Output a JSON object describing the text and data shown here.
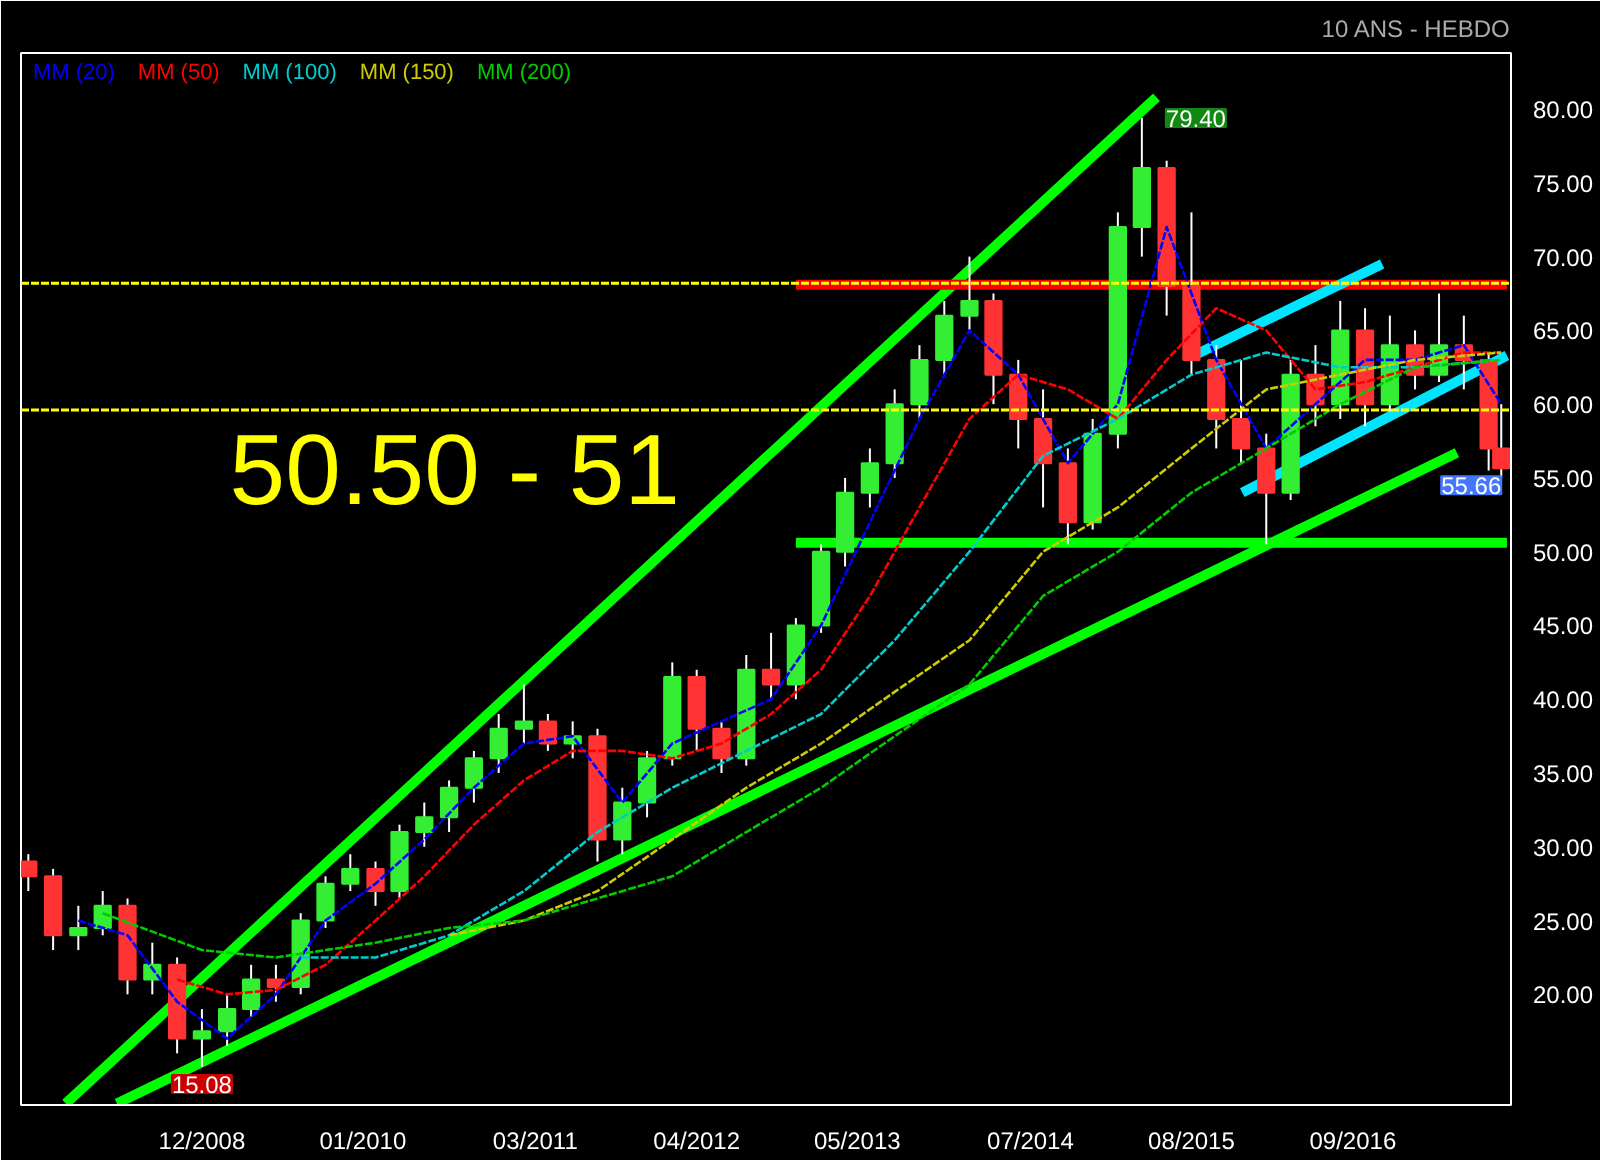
{
  "chart_data": {
    "type": "candlestick",
    "subtitle": "10 ANS - HEBDO",
    "x": [
      "2007-10",
      "2007-12",
      "2008-02",
      "2008-04",
      "2008-06",
      "2008-08",
      "2008-10",
      "2008-12",
      "2009-02",
      "2009-04",
      "2009-06",
      "2009-08",
      "2009-10",
      "2009-12",
      "2010-02",
      "2010-04",
      "2010-06",
      "2010-08",
      "2010-10",
      "2010-12",
      "2011-02",
      "2011-04",
      "2011-06",
      "2011-08",
      "2011-10",
      "2011-12",
      "2012-02",
      "2012-04",
      "2012-06",
      "2012-08",
      "2012-10",
      "2012-12",
      "2013-02",
      "2013-04",
      "2013-06",
      "2013-08",
      "2013-10",
      "2013-12",
      "2014-02",
      "2014-04",
      "2014-06",
      "2014-08",
      "2014-10",
      "2014-12",
      "2015-02",
      "2015-04",
      "2015-06",
      "2015-08",
      "2015-10",
      "2015-12",
      "2016-02",
      "2016-04",
      "2016-06",
      "2016-08",
      "2016-10",
      "2016-12",
      "2017-02",
      "2017-04",
      "2017-06",
      "2017-08",
      "2017-09"
    ],
    "ohlc": [
      [
        29,
        29.5,
        27,
        28
      ],
      [
        28,
        28.5,
        23,
        24
      ],
      [
        24,
        26,
        23,
        24.5
      ],
      [
        24.5,
        27,
        24,
        26
      ],
      [
        26,
        26.5,
        20,
        21
      ],
      [
        21,
        23.5,
        20,
        22
      ],
      [
        22,
        22.5,
        16,
        17
      ],
      [
        17,
        19,
        15.08,
        17.5
      ],
      [
        17.5,
        20,
        16.5,
        19
      ],
      [
        19,
        22,
        18.5,
        21
      ],
      [
        21,
        22,
        19.5,
        20.5
      ],
      [
        20.5,
        25.5,
        20,
        25
      ],
      [
        25,
        28,
        24.5,
        27.5
      ],
      [
        27.5,
        29.5,
        27,
        28.5
      ],
      [
        28.5,
        29,
        26,
        27
      ],
      [
        27,
        31.5,
        26.5,
        31
      ],
      [
        31,
        33,
        30,
        32
      ],
      [
        32,
        34.5,
        31,
        34
      ],
      [
        34,
        36.5,
        33,
        36
      ],
      [
        36,
        39,
        35,
        38
      ],
      [
        38,
        41,
        37,
        38.5
      ],
      [
        38.5,
        39,
        36.5,
        37
      ],
      [
        37,
        38.5,
        36,
        37.5
      ],
      [
        37.5,
        38,
        29,
        30.5
      ],
      [
        30.5,
        34,
        29.5,
        33
      ],
      [
        33,
        36.5,
        32,
        36
      ],
      [
        36,
        42.5,
        35.5,
        41.5
      ],
      [
        41.5,
        42,
        36.5,
        38
      ],
      [
        38,
        38.5,
        35,
        36
      ],
      [
        36,
        43,
        35.5,
        42
      ],
      [
        42,
        44.5,
        40,
        41
      ],
      [
        41,
        45.5,
        40,
        45
      ],
      [
        45,
        50.5,
        44.5,
        50
      ],
      [
        50,
        55,
        49,
        54
      ],
      [
        54,
        57,
        53,
        56
      ],
      [
        56,
        61,
        55,
        60
      ],
      [
        60,
        64,
        59,
        63
      ],
      [
        63,
        67,
        62,
        66
      ],
      [
        66,
        70,
        65,
        67
      ],
      [
        67,
        67.5,
        60,
        62
      ],
      [
        62,
        63,
        57,
        59
      ],
      [
        59,
        61,
        53,
        56
      ],
      [
        56,
        57,
        50.5,
        52
      ],
      [
        52,
        59,
        51.5,
        58
      ],
      [
        58,
        73,
        57,
        72
      ],
      [
        72,
        79.4,
        70,
        76
      ],
      [
        76,
        76.5,
        66,
        68
      ],
      [
        68,
        73,
        62,
        63
      ],
      [
        63,
        64,
        57,
        59
      ],
      [
        59,
        63,
        56,
        57
      ],
      [
        57,
        58,
        50.5,
        54
      ],
      [
        54,
        63,
        53.5,
        62
      ],
      [
        62,
        64,
        58.5,
        60
      ],
      [
        60,
        67,
        59,
        65
      ],
      [
        65,
        66.5,
        58.5,
        60
      ],
      [
        60,
        66,
        59.5,
        64
      ],
      [
        64,
        65,
        61,
        62
      ],
      [
        62,
        67.5,
        61.5,
        64
      ],
      [
        64,
        66,
        61,
        63
      ],
      [
        63,
        63.5,
        55.5,
        57
      ],
      [
        57,
        60,
        55,
        55.66
      ]
    ],
    "series": [
      {
        "name": "MM (20)",
        "type": "line",
        "line_style": "dashed",
        "color": "#0000ff",
        "x": [
          "2008-02",
          "2008-06",
          "2008-10",
          "2009-02",
          "2009-06",
          "2009-10",
          "2010-02",
          "2010-06",
          "2010-10",
          "2011-02",
          "2011-06",
          "2011-10",
          "2012-02",
          "2012-06",
          "2012-10",
          "2013-02",
          "2013-06",
          "2013-10",
          "2014-02",
          "2014-06",
          "2014-10",
          "2015-02",
          "2015-06",
          "2015-10",
          "2016-02",
          "2016-06",
          "2016-10",
          "2017-02",
          "2017-06",
          "2017-09"
        ],
        "values": [
          25,
          24,
          19.5,
          17,
          20,
          25,
          27.5,
          30.5,
          34,
          37,
          37.5,
          33,
          37,
          38.5,
          40,
          45,
          52,
          59,
          65,
          62,
          56,
          60,
          72,
          63,
          57,
          60,
          63,
          63,
          64,
          60
        ]
      },
      {
        "name": "MM (50)",
        "type": "line",
        "line_style": "dashed",
        "color": "#ff0000",
        "x": [
          "2008-10",
          "2009-02",
          "2009-06",
          "2009-10",
          "2010-02",
          "2010-06",
          "2010-10",
          "2011-02",
          "2011-06",
          "2011-10",
          "2012-02",
          "2012-06",
          "2012-10",
          "2013-02",
          "2013-06",
          "2013-10",
          "2014-02",
          "2014-06",
          "2014-10",
          "2015-02",
          "2015-06",
          "2015-10",
          "2016-02",
          "2016-06",
          "2016-10",
          "2017-02",
          "2017-06",
          "2017-09"
        ],
        "values": [
          21,
          20,
          20.3,
          22,
          25,
          28,
          31.5,
          34.5,
          36.5,
          36.5,
          36,
          37,
          39,
          42,
          47,
          53,
          59,
          62,
          61,
          59,
          63,
          66.5,
          65,
          61,
          61.5,
          62.5,
          63.5,
          63.5
        ]
      },
      {
        "name": "MM (100)",
        "type": "line",
        "line_style": "dashed",
        "color": "#00cccc",
        "x": [
          "2009-08",
          "2010-02",
          "2010-08",
          "2011-02",
          "2011-08",
          "2012-02",
          "2012-08",
          "2013-02",
          "2013-08",
          "2014-02",
          "2014-08",
          "2015-02",
          "2015-08",
          "2016-02",
          "2016-08",
          "2017-02",
          "2017-09"
        ],
        "values": [
          22.5,
          22.5,
          24,
          27,
          31,
          34,
          36.5,
          39,
          44,
          50,
          56.5,
          59,
          62,
          63.5,
          62.5,
          62.5,
          63
        ]
      },
      {
        "name": "MM (150)",
        "type": "line",
        "line_style": "dashed",
        "color": "#cccc00",
        "x": [
          "2010-08",
          "2011-02",
          "2011-08",
          "2012-02",
          "2012-08",
          "2013-02",
          "2013-08",
          "2014-02",
          "2014-08",
          "2015-02",
          "2015-08",
          "2016-02",
          "2016-08",
          "2017-02",
          "2017-09"
        ],
        "values": [
          24,
          25,
          27,
          30.5,
          34,
          37,
          40.5,
          44,
          50,
          53,
          57,
          61,
          62,
          63,
          63.5
        ]
      },
      {
        "name": "MM (200)",
        "type": "line",
        "line_style": "dashed",
        "color": "#00cc00",
        "x": [
          "2008-04",
          "2008-12",
          "2009-06",
          "2010-02",
          "2010-08",
          "2011-02",
          "2011-08",
          "2012-02",
          "2012-08",
          "2013-02",
          "2013-08",
          "2014-02",
          "2014-08",
          "2015-02",
          "2015-08",
          "2016-02",
          "2016-08",
          "2017-02",
          "2017-09"
        ],
        "values": [
          25.5,
          23,
          22.5,
          23.5,
          24.5,
          25,
          26.5,
          28,
          31,
          34,
          37.5,
          41,
          47,
          50,
          54,
          57,
          60,
          62.5,
          63
        ]
      },
      {
        "type": "line",
        "line_style": "solid",
        "color": "#00ff00",
        "x": [
          "2008-01-01",
          "2015-05-07"
        ],
        "values": [
          12.6,
          80.8
        ]
      },
      {
        "type": "line",
        "line_style": "solid",
        "color": "#00ff00",
        "x": [
          "2008-05-06",
          "2017-05-15"
        ],
        "values": [
          12.6,
          56.7
        ]
      },
      {
        "type": "line",
        "line_style": "solid",
        "color": "#00ff00",
        "x": [
          "2012-12-01",
          "2017-09-15"
        ],
        "values": [
          50.6,
          50.6
        ]
      },
      {
        "type": "line",
        "line_style": "solid",
        "color": "#ff0000",
        "x": [
          "2012-12-01",
          "2017-09-15"
        ],
        "values": [
          68.1,
          68.1
        ]
      },
      {
        "type": "line",
        "line_style": "solid",
        "color": "#00e5ff",
        "x": [
          "2015-08-07",
          "2016-11-12"
        ],
        "values": [
          63.3,
          69.5
        ]
      },
      {
        "type": "line",
        "line_style": "solid",
        "color": "#00e5ff",
        "x": [
          "2015-12-04",
          "2017-09-15"
        ],
        "values": [
          54.0,
          63.3
        ]
      }
    ],
    "ref_lines": [
      {
        "axis": "y",
        "value": 68.2,
        "color": "#ffff00",
        "line_style": "dashed"
      },
      {
        "axis": "y",
        "value": 59.6,
        "color": "#ffff00",
        "line_style": "dashed"
      }
    ],
    "annotations": [
      "50.50 - 51",
      {
        "text": "79.40",
        "x": "2015-04",
        "y": 79.4
      },
      {
        "text": "55.66",
        "x": "2017-09",
        "y": 55.66
      },
      {
        "text": "15.08",
        "x": "2008-12",
        "y": 15.08
      }
    ],
    "xlim": [
      "2007-09-13",
      "2017-09-25"
    ],
    "xticks": [
      {
        "value": "2008-12",
        "label": "12/2008"
      },
      {
        "value": "2010-01",
        "label": "01/2010"
      },
      {
        "value": "2011-03",
        "label": "03/2011"
      },
      {
        "value": "2012-04",
        "label": "04/2012"
      },
      {
        "value": "2013-05",
        "label": "05/2013"
      },
      {
        "value": "2014-07",
        "label": "07/2014"
      },
      {
        "value": "2015-08",
        "label": "08/2015"
      },
      {
        "value": "2016-09",
        "label": "09/2016"
      }
    ],
    "ylim": [
      12.5,
      83.8
    ],
    "yticks": [
      {
        "value": 20,
        "label": "20.00"
      },
      {
        "value": 25,
        "label": "25.00"
      },
      {
        "value": 30,
        "label": "30.00"
      },
      {
        "value": 35,
        "label": "35.00"
      },
      {
        "value": 40,
        "label": "40.00"
      },
      {
        "value": 45,
        "label": "45.00"
      },
      {
        "value": 50,
        "label": "50.00"
      },
      {
        "value": 55,
        "label": "55.00"
      },
      {
        "value": 60,
        "label": "60.00"
      },
      {
        "value": 65,
        "label": "65.00"
      },
      {
        "value": 70,
        "label": "70.00"
      },
      {
        "value": 75,
        "label": "75.00"
      },
      {
        "value": 80,
        "label": "80.00"
      }
    ],
    "grid": false,
    "legend": "top left"
  }
}
